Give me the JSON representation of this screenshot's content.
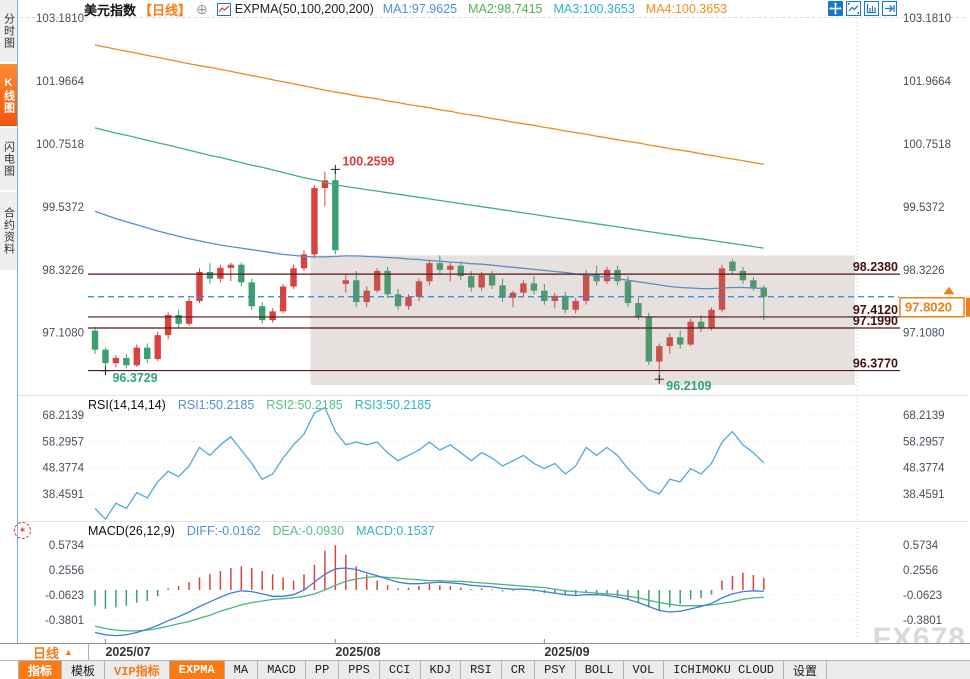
{
  "header": {
    "symbol": "美元指数",
    "period_tag": "【日线】",
    "plus_glyph": "⊕",
    "indicator": "EXPMA(50,100,200,200)",
    "ma_values": [
      {
        "label": "MA1:97.9625",
        "color": "#4f8fdd"
      },
      {
        "label": "MA2:98.7415",
        "color": "#52b152"
      },
      {
        "label": "MA3:100.3653",
        "color": "#2fb3c6"
      },
      {
        "label": "MA4:100.3653",
        "color": "#f08c1e"
      }
    ],
    "icons": [
      "pan-icon",
      "frame-chart-icon",
      "axis-chart-icon",
      "forward-icon"
    ]
  },
  "sidebar": {
    "items": [
      {
        "label": "分时图",
        "active": false
      },
      {
        "label": "K线图",
        "active": true
      },
      {
        "label": "闪电图",
        "active": false
      },
      {
        "label": "合约资料",
        "active": false
      }
    ]
  },
  "rsi_panel": {
    "title": "RSI(14,14,14)",
    "values": [
      {
        "label": "RSI1:50.2185",
        "color": "#4f8fdd"
      },
      {
        "label": "RSI2:50.2185",
        "color": "#52c285"
      },
      {
        "label": "RSI3:50.2185",
        "color": "#2fb3c6"
      }
    ]
  },
  "macd_panel": {
    "title": "MACD(26,12,9)",
    "values": [
      {
        "label": "DIFF:-0.0162",
        "color": "#4f8fdd"
      },
      {
        "label": "DEA:-0.0930",
        "color": "#52c285"
      },
      {
        "label": "MACD:0.1537",
        "color": "#2fb3c6"
      }
    ]
  },
  "axis": {
    "period_button": {
      "label": "日线",
      "arrow": "▲"
    }
  },
  "tabs": [
    {
      "label": "指标",
      "style": "active"
    },
    {
      "label": "模板",
      "style": "plain"
    },
    {
      "label": "VIP指标",
      "style": "vip"
    },
    {
      "label": "EXPMA",
      "style": "active"
    },
    {
      "label": "MA",
      "style": "plain"
    },
    {
      "label": "MACD",
      "style": "plain"
    },
    {
      "label": "PP",
      "style": "plain"
    },
    {
      "label": "PPS",
      "style": "plain"
    },
    {
      "label": "CCI",
      "style": "plain"
    },
    {
      "label": "KDJ",
      "style": "plain"
    },
    {
      "label": "RSI",
      "style": "plain"
    },
    {
      "label": "CR",
      "style": "plain"
    },
    {
      "label": "PSY",
      "style": "plain"
    },
    {
      "label": "BOLL",
      "style": "plain"
    },
    {
      "label": "VOL",
      "style": "plain"
    },
    {
      "label": "ICHIMOKU CLOUD",
      "style": "plain"
    },
    {
      "label": "设置",
      "style": "plain"
    }
  ],
  "watermark": {
    "text": "FX678"
  },
  "colors": {
    "up": "#d9423f",
    "down": "#3aa070",
    "ma50": "#4f8fdd",
    "ma100": "#45b07e",
    "ma200": "#ef8a1f",
    "hline": "#571414",
    "hline_text": "#43100f",
    "dash_line": "#2e82e0",
    "price_box": "#f08014",
    "zone": "rgba(151,129,120,0.24)",
    "axis_text": "#44505e",
    "annot_high": "#e03a3a",
    "annot_low": "#2ea47c",
    "rsi_line": "#55a7d8",
    "diff": "#3d7fd6",
    "dea": "#4db381",
    "hist_up": "#d9423f",
    "hist_down": "#3aa070",
    "accent": "#fb7a14"
  },
  "chart_data": {
    "type": "candlestick",
    "xticks": [
      {
        "label": "2025/07",
        "candle": 1
      },
      {
        "label": "2025/08",
        "candle": 23
      },
      {
        "label": "2025/09",
        "candle": 43
      }
    ],
    "price": {
      "yticks": [
        "103.1810",
        "101.9664",
        "100.7518",
        "99.5372",
        "98.3226",
        "97.1080"
      ],
      "ytick_values": [
        103.181,
        101.9664,
        100.7518,
        99.5372,
        98.3226,
        97.108
      ],
      "hlines": [
        {
          "value": 98.238,
          "label": "98.2380"
        },
        {
          "value": 97.412,
          "label": "97.4120"
        },
        {
          "value": 97.199,
          "label": "97.1990"
        },
        {
          "value": 96.377,
          "label": "96.3770"
        }
      ],
      "current_price": {
        "value": 97.802,
        "label": "97.8020"
      },
      "zone": {
        "from_candle": 21,
        "top": 98.6,
        "bottom": 96.1
      },
      "annotations": [
        {
          "text": "100.2599",
          "price": 100.2599,
          "candle": 23,
          "kind": "high"
        },
        {
          "text": "96.3729",
          "price": 96.3729,
          "candle": 1,
          "kind": "low"
        },
        {
          "text": "96.2109",
          "price": 96.2109,
          "candle": 54,
          "kind": "low"
        }
      ],
      "candles": [
        [
          97.15,
          97.22,
          96.7,
          96.78
        ],
        [
          96.78,
          96.82,
          96.3729,
          96.52
        ],
        [
          96.52,
          96.68,
          96.44,
          96.62
        ],
        [
          96.62,
          96.7,
          96.42,
          96.48
        ],
        [
          96.48,
          96.88,
          96.45,
          96.82
        ],
        [
          96.82,
          96.9,
          96.52,
          96.6
        ],
        [
          96.6,
          97.12,
          96.56,
          97.06
        ],
        [
          97.06,
          97.5,
          96.98,
          97.45
        ],
        [
          97.45,
          97.55,
          97.2,
          97.28
        ],
        [
          97.28,
          97.78,
          97.24,
          97.72
        ],
        [
          97.72,
          98.35,
          97.68,
          98.28
        ],
        [
          98.28,
          98.45,
          98.05,
          98.15
        ],
        [
          98.15,
          98.42,
          98.08,
          98.36
        ],
        [
          98.36,
          98.46,
          98.1,
          98.42
        ],
        [
          98.42,
          98.46,
          98.0,
          98.08
        ],
        [
          98.08,
          98.15,
          97.55,
          97.62
        ],
        [
          97.62,
          97.7,
          97.28,
          97.35
        ],
        [
          97.35,
          97.58,
          97.3,
          97.52
        ],
        [
          97.52,
          98.05,
          97.48,
          98.0
        ],
        [
          98.0,
          98.42,
          97.95,
          98.35
        ],
        [
          98.35,
          98.7,
          98.3,
          98.62
        ],
        [
          98.62,
          99.95,
          98.55,
          99.9
        ],
        [
          99.9,
          100.22,
          99.55,
          100.05
        ],
        [
          100.05,
          100.2599,
          98.62,
          98.7
        ],
        [
          98.05,
          98.25,
          97.88,
          98.12
        ],
        [
          98.12,
          98.3,
          97.6,
          97.7
        ],
        [
          97.7,
          98.0,
          97.6,
          97.92
        ],
        [
          97.92,
          98.35,
          97.88,
          98.3
        ],
        [
          98.3,
          98.38,
          97.78,
          97.85
        ],
        [
          97.85,
          97.95,
          97.55,
          97.62
        ],
        [
          97.62,
          97.85,
          97.55,
          97.8
        ],
        [
          97.8,
          98.15,
          97.72,
          98.1
        ],
        [
          98.1,
          98.52,
          98.02,
          98.45
        ],
        [
          98.45,
          98.6,
          98.25,
          98.32
        ],
        [
          98.32,
          98.45,
          98.1,
          98.4
        ],
        [
          98.4,
          98.48,
          98.12,
          98.2
        ],
        [
          98.2,
          98.3,
          97.9,
          97.98
        ],
        [
          97.98,
          98.28,
          97.92,
          98.22
        ],
        [
          98.22,
          98.3,
          97.95,
          98.02
        ],
        [
          98.02,
          98.15,
          97.7,
          97.78
        ],
        [
          97.78,
          97.92,
          97.6,
          97.88
        ],
        [
          97.88,
          98.12,
          97.8,
          98.06
        ],
        [
          98.06,
          98.2,
          97.85,
          97.92
        ],
        [
          97.92,
          98.05,
          97.65,
          97.72
        ],
        [
          97.72,
          97.88,
          97.58,
          97.82
        ],
        [
          97.82,
          97.9,
          97.48,
          97.55
        ],
        [
          97.55,
          97.78,
          97.48,
          97.72
        ],
        [
          97.72,
          98.32,
          97.65,
          98.25
        ],
        [
          98.25,
          98.4,
          98.02,
          98.1
        ],
        [
          98.1,
          98.38,
          98.05,
          98.32
        ],
        [
          98.32,
          98.4,
          98.02,
          98.1
        ],
        [
          98.1,
          98.2,
          97.6,
          97.68
        ],
        [
          97.68,
          97.78,
          97.35,
          97.42
        ],
        [
          97.42,
          97.5,
          96.48,
          96.55
        ],
        [
          96.55,
          96.9,
          96.2109,
          96.85
        ],
        [
          96.85,
          97.1,
          96.7,
          97.02
        ],
        [
          97.02,
          97.15,
          96.8,
          96.88
        ],
        [
          96.88,
          97.38,
          96.85,
          97.32
        ],
        [
          97.32,
          97.45,
          97.12,
          97.2
        ],
        [
          97.2,
          97.6,
          97.15,
          97.55
        ],
        [
          97.55,
          98.42,
          97.5,
          98.35
        ],
        [
          98.48,
          98.52,
          98.25,
          98.3
        ],
        [
          98.3,
          98.38,
          98.05,
          98.12
        ],
        [
          98.12,
          98.18,
          97.92,
          97.98
        ],
        [
          97.98,
          98.02,
          97.35,
          97.802
        ]
      ],
      "ma50": [
        99.45,
        99.38,
        99.31,
        99.25,
        99.19,
        99.13,
        99.07,
        99.02,
        98.97,
        98.92,
        98.88,
        98.84,
        98.8,
        98.77,
        98.74,
        98.71,
        98.68,
        98.65,
        98.62,
        98.6,
        98.58,
        98.57,
        98.57,
        98.58,
        98.59,
        98.59,
        98.58,
        98.57,
        98.56,
        98.55,
        98.53,
        98.52,
        98.5,
        98.49,
        98.47,
        98.46,
        98.44,
        98.43,
        98.41,
        98.39,
        98.37,
        98.35,
        98.33,
        98.31,
        98.29,
        98.27,
        98.24,
        98.22,
        98.2,
        98.17,
        98.15,
        98.12,
        98.09,
        98.06,
        98.03,
        98.0,
        97.98,
        97.97,
        97.96,
        97.96,
        97.97,
        97.98,
        97.98,
        97.97,
        97.96
      ],
      "ma100": [
        101.06,
        101.01,
        100.96,
        100.92,
        100.87,
        100.82,
        100.77,
        100.73,
        100.68,
        100.63,
        100.58,
        100.53,
        100.49,
        100.44,
        100.39,
        100.34,
        100.3,
        100.25,
        100.2,
        100.15,
        100.1,
        100.06,
        100.01,
        99.96,
        99.93,
        99.9,
        99.87,
        99.84,
        99.81,
        99.78,
        99.75,
        99.72,
        99.69,
        99.66,
        99.63,
        99.6,
        99.57,
        99.54,
        99.51,
        99.48,
        99.45,
        99.42,
        99.39,
        99.36,
        99.33,
        99.3,
        99.27,
        99.24,
        99.21,
        99.18,
        99.15,
        99.12,
        99.09,
        99.06,
        99.03,
        99.0,
        98.97,
        98.94,
        98.92,
        98.89,
        98.86,
        98.83,
        98.8,
        98.77,
        98.74
      ],
      "ma200": [
        102.66,
        102.62,
        102.58,
        102.54,
        102.5,
        102.46,
        102.42,
        102.38,
        102.34,
        102.3,
        102.26,
        102.23,
        102.19,
        102.15,
        102.11,
        102.07,
        102.03,
        101.99,
        101.95,
        101.91,
        101.87,
        101.83,
        101.79,
        101.75,
        101.72,
        101.68,
        101.65,
        101.62,
        101.58,
        101.55,
        101.51,
        101.48,
        101.45,
        101.41,
        101.38,
        101.34,
        101.31,
        101.28,
        101.24,
        101.21,
        101.17,
        101.14,
        101.11,
        101.07,
        101.04,
        101.0,
        100.97,
        100.94,
        100.9,
        100.87,
        100.83,
        100.8,
        100.77,
        100.73,
        100.7,
        100.66,
        100.63,
        100.6,
        100.56,
        100.53,
        100.49,
        100.46,
        100.43,
        100.39,
        100.36
      ]
    },
    "rsi": {
      "yticks": [
        "68.2139",
        "58.2957",
        "48.3774",
        "38.4591"
      ],
      "ytick_values": [
        68.2139,
        58.2957,
        48.3774,
        38.4591
      ],
      "values": [
        33,
        29,
        35,
        33,
        39,
        37,
        43,
        47,
        45,
        49,
        56,
        53,
        57,
        60,
        55,
        50,
        44,
        46,
        52,
        57,
        61,
        69,
        71,
        62,
        57,
        58,
        57,
        58,
        54,
        51,
        53,
        55,
        58,
        55,
        57,
        54,
        51,
        54,
        52,
        49,
        51,
        53,
        50,
        48,
        50,
        46,
        49,
        56,
        53,
        56,
        53,
        48,
        44,
        40,
        38.46,
        44,
        43,
        48,
        46,
        50,
        58,
        62,
        57,
        54,
        50.22
      ]
    },
    "macd": {
      "yticks": [
        "0.5734",
        "0.2556",
        "-0.0623",
        "-0.3801"
      ],
      "ytick_values": [
        0.5734,
        0.2556,
        -0.0623,
        -0.3801
      ],
      "hist": [
        -0.2,
        -0.24,
        -0.22,
        -0.2,
        -0.16,
        -0.14,
        -0.08,
        0.02,
        0.05,
        0.1,
        0.16,
        0.2,
        0.24,
        0.28,
        0.3,
        0.28,
        0.24,
        0.2,
        0.16,
        0.12,
        0.2,
        0.32,
        0.5,
        0.57,
        0.45,
        0.3,
        0.2,
        0.12,
        0.06,
        0.02,
        0.03,
        0.05,
        0.08,
        0.06,
        0.05,
        0.03,
        0.01,
        0.02,
        0.01,
        -0.02,
        -0.01,
        0.01,
        -0.02,
        -0.04,
        -0.05,
        -0.07,
        -0.06,
        -0.04,
        -0.05,
        -0.06,
        -0.08,
        -0.12,
        -0.16,
        -0.22,
        -0.26,
        -0.22,
        -0.18,
        -0.12,
        -0.1,
        -0.06,
        0.12,
        0.18,
        0.22,
        0.19,
        0.1537
      ],
      "diff": [
        -0.54,
        -0.57,
        -0.58,
        -0.57,
        -0.54,
        -0.5,
        -0.45,
        -0.39,
        -0.34,
        -0.28,
        -0.21,
        -0.15,
        -0.09,
        -0.04,
        -0.01,
        -0.02,
        -0.05,
        -0.08,
        -0.08,
        -0.06,
        0.0,
        0.1,
        0.2,
        0.27,
        0.28,
        0.26,
        0.22,
        0.18,
        0.14,
        0.1,
        0.08,
        0.08,
        0.09,
        0.1,
        0.09,
        0.08,
        0.06,
        0.05,
        0.04,
        0.02,
        0.01,
        0.01,
        0.0,
        -0.02,
        -0.04,
        -0.06,
        -0.07,
        -0.06,
        -0.06,
        -0.07,
        -0.09,
        -0.12,
        -0.16,
        -0.21,
        -0.26,
        -0.28,
        -0.27,
        -0.24,
        -0.21,
        -0.17,
        -0.1,
        -0.05,
        -0.02,
        -0.01,
        -0.0162
      ],
      "dea": [
        -0.46,
        -0.49,
        -0.51,
        -0.52,
        -0.52,
        -0.51,
        -0.49,
        -0.46,
        -0.43,
        -0.4,
        -0.36,
        -0.32,
        -0.27,
        -0.23,
        -0.19,
        -0.16,
        -0.14,
        -0.12,
        -0.11,
        -0.1,
        -0.08,
        -0.05,
        0.0,
        0.06,
        0.11,
        0.14,
        0.16,
        0.17,
        0.16,
        0.15,
        0.14,
        0.13,
        0.12,
        0.12,
        0.11,
        0.11,
        0.1,
        0.09,
        0.08,
        0.07,
        0.06,
        0.05,
        0.04,
        0.03,
        0.01,
        -0.01,
        -0.02,
        -0.03,
        -0.04,
        -0.05,
        -0.06,
        -0.08,
        -0.1,
        -0.13,
        -0.16,
        -0.18,
        -0.2,
        -0.2,
        -0.2,
        -0.19,
        -0.17,
        -0.15,
        -0.12,
        -0.1,
        -0.093
      ]
    }
  }
}
